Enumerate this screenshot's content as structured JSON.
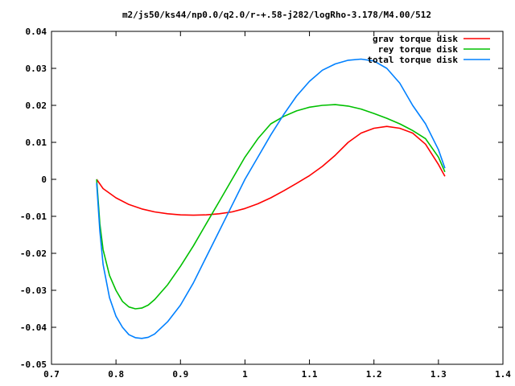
{
  "chart_data": {
    "type": "line",
    "title": "m2/js50/ks44/np0.0/q2.0/r-+.58-j282/logRho-3.178/M4.00/512",
    "xlabel": "",
    "ylabel": "",
    "xlim": [
      0.7,
      1.4
    ],
    "ylim": [
      -0.05,
      0.04
    ],
    "x_ticks": [
      0.7,
      0.8,
      0.9,
      1.0,
      1.1,
      1.2,
      1.3,
      1.4
    ],
    "x_tick_labels": [
      "0.7",
      "0.8",
      "0.9",
      "1",
      "1.1",
      "1.2",
      "1.3",
      "1.4"
    ],
    "y_ticks": [
      -0.05,
      -0.04,
      -0.03,
      -0.02,
      -0.01,
      0,
      0.01,
      0.02,
      0.03,
      0.04
    ],
    "y_tick_labels": [
      "-0.05",
      "-0.04",
      "-0.03",
      "-0.02",
      "-0.01",
      "0",
      "0.01",
      "0.02",
      "0.03",
      "0.04"
    ],
    "grid": false,
    "legend_position": "top-right",
    "series": [
      {
        "name": "grav torque disk",
        "color": "#ff0000",
        "x": [
          0.77,
          0.78,
          0.8,
          0.82,
          0.84,
          0.86,
          0.88,
          0.9,
          0.92,
          0.94,
          0.96,
          0.98,
          1.0,
          1.02,
          1.04,
          1.06,
          1.08,
          1.1,
          1.12,
          1.14,
          1.16,
          1.18,
          1.2,
          1.22,
          1.24,
          1.26,
          1.28,
          1.3,
          1.31
        ],
        "y": [
          0.0,
          -0.0025,
          -0.005,
          -0.0068,
          -0.008,
          -0.0088,
          -0.0093,
          -0.0096,
          -0.0097,
          -0.0096,
          -0.0093,
          -0.0088,
          -0.0079,
          -0.0066,
          -0.005,
          -0.0031,
          -0.0011,
          0.001,
          0.0035,
          0.0065,
          0.01,
          0.0125,
          0.0138,
          0.0143,
          0.0138,
          0.0125,
          0.0095,
          0.004,
          0.0008
        ]
      },
      {
        "name": "rey torque disk",
        "color": "#00c000",
        "x": [
          0.77,
          0.775,
          0.78,
          0.79,
          0.8,
          0.81,
          0.82,
          0.83,
          0.84,
          0.85,
          0.86,
          0.88,
          0.9,
          0.92,
          0.94,
          0.96,
          0.98,
          1.0,
          1.02,
          1.04,
          1.06,
          1.08,
          1.1,
          1.12,
          1.14,
          1.16,
          1.18,
          1.2,
          1.22,
          1.24,
          1.26,
          1.28,
          1.3,
          1.31
        ],
        "y": [
          0.0,
          -0.012,
          -0.019,
          -0.026,
          -0.03,
          -0.033,
          -0.0345,
          -0.035,
          -0.0348,
          -0.034,
          -0.0325,
          -0.0285,
          -0.0235,
          -0.018,
          -0.012,
          -0.006,
          0.0,
          0.006,
          0.011,
          0.015,
          0.017,
          0.0185,
          0.0195,
          0.02,
          0.0202,
          0.0198,
          0.019,
          0.0178,
          0.0165,
          0.015,
          0.0132,
          0.011,
          0.006,
          0.002
        ]
      },
      {
        "name": "total torque disk",
        "color": "#0080ff",
        "x": [
          0.77,
          0.775,
          0.78,
          0.79,
          0.8,
          0.81,
          0.82,
          0.83,
          0.84,
          0.85,
          0.86,
          0.88,
          0.9,
          0.92,
          0.94,
          0.96,
          0.98,
          1.0,
          1.02,
          1.04,
          1.06,
          1.08,
          1.1,
          1.12,
          1.14,
          1.16,
          1.18,
          1.2,
          1.22,
          1.24,
          1.26,
          1.28,
          1.3,
          1.31
        ],
        "y": [
          -0.001,
          -0.014,
          -0.023,
          -0.032,
          -0.037,
          -0.04,
          -0.042,
          -0.0428,
          -0.043,
          -0.0427,
          -0.0418,
          -0.0385,
          -0.034,
          -0.028,
          -0.021,
          -0.014,
          -0.007,
          0.0,
          0.006,
          0.012,
          0.0175,
          0.0225,
          0.0265,
          0.0295,
          0.0312,
          0.0322,
          0.0325,
          0.032,
          0.03,
          0.026,
          0.02,
          0.015,
          0.008,
          0.003
        ]
      }
    ]
  }
}
